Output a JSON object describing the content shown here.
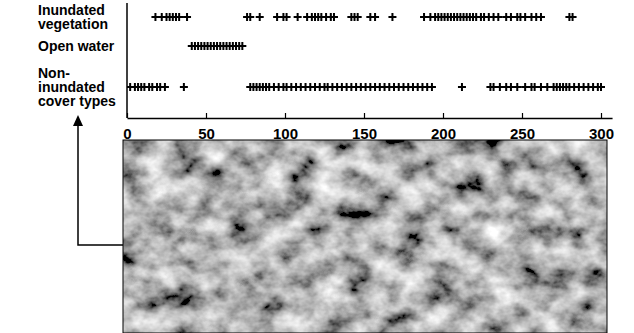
{
  "chart_data": {
    "type": "scatter",
    "categories": [
      "Inundated\nvegetation",
      "Open water",
      "Non-\ninundated\ncover types"
    ],
    "x": [
      [
        18,
        22,
        25,
        27,
        29,
        31,
        33,
        38,
        76,
        78,
        84,
        95,
        99,
        101,
        108,
        114,
        117,
        119,
        121,
        123,
        126,
        129,
        131,
        142,
        144,
        146,
        154,
        157,
        168,
        188,
        192,
        195,
        197,
        199,
        201,
        203,
        205,
        207,
        209,
        211,
        213,
        215,
        217,
        219,
        221,
        224,
        226,
        229,
        232,
        235,
        240,
        243,
        247,
        249,
        252,
        256,
        259,
        262,
        280,
        282
      ],
      [
        41,
        43,
        45,
        47,
        49,
        51,
        53,
        55,
        57,
        59,
        61,
        63,
        65,
        67,
        69,
        71,
        73
      ],
      [
        2,
        5,
        7,
        9,
        11,
        14,
        16,
        19,
        21,
        24,
        36,
        78,
        80,
        82,
        84,
        86,
        88,
        90,
        93,
        96,
        99,
        101,
        104,
        107,
        110,
        113,
        116,
        119,
        122,
        125,
        127,
        130,
        133,
        136,
        139,
        142,
        145,
        148,
        151,
        154,
        157,
        160,
        163,
        166,
        169,
        172,
        175,
        178,
        181,
        184,
        187,
        190,
        193,
        212,
        230,
        232,
        236,
        240,
        243,
        247,
        252,
        256,
        258,
        262,
        266,
        270,
        272,
        274,
        276,
        278,
        280,
        283,
        286,
        289,
        292,
        295,
        298,
        300
      ]
    ],
    "color": "#000000",
    "marker": "plus",
    "xlim": [
      0,
      307
    ],
    "xticks": [
      0,
      50,
      100,
      150,
      200,
      250,
      300
    ],
    "tick_labels": "x",
    "grid": false
  }
}
